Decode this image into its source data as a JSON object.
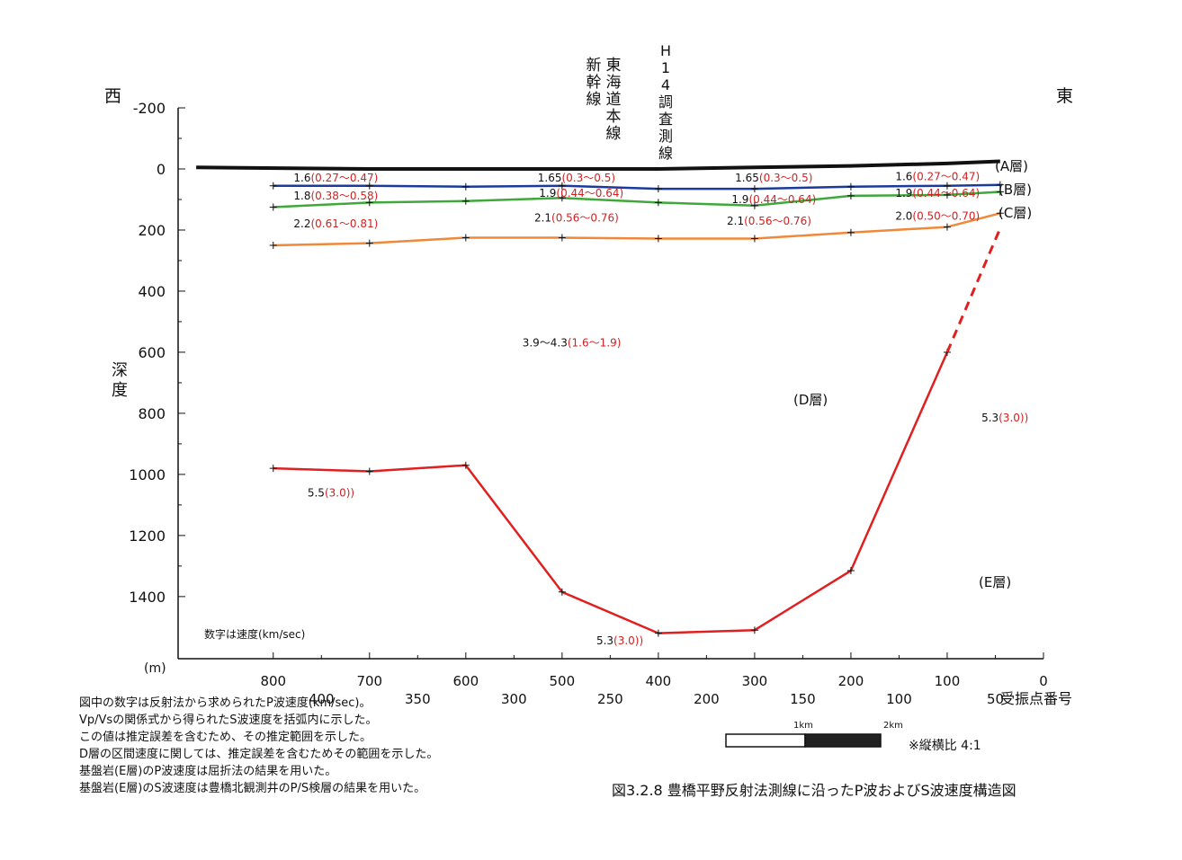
{
  "chart_data": {
    "type": "line",
    "direction": {
      "west": "西",
      "east": "東"
    },
    "ylabel": "深度",
    "yunit": "(m)",
    "xlabel": "受振点番号",
    "y_ticks": [
      "-200",
      "0",
      "200",
      "400",
      "600",
      "800",
      "1000",
      "1200",
      "1400"
    ],
    "ylim": [
      -200,
      1600
    ],
    "x_ticks_distance": [
      "800",
      "700",
      "600",
      "500",
      "400",
      "300",
      "200",
      "100",
      "0"
    ],
    "x_ticks_receiver": [
      "400",
      "350",
      "300",
      "250",
      "200",
      "150",
      "100",
      "50"
    ],
    "xlim": [
      880,
      0
    ],
    "line_labels": [
      {
        "text": "東海道本線"
      },
      {
        "text": "新幹線"
      },
      {
        "text": "H14調査測線"
      }
    ],
    "layer_labels": [
      "(A層)",
      "(B層)",
      "(C層)",
      "(D層)",
      "(E層)"
    ],
    "series": [
      {
        "id": "surface",
        "color": "#111111",
        "points": [
          [
            880,
            -5
          ],
          [
            700,
            0
          ],
          [
            500,
            0
          ],
          [
            400,
            0
          ],
          [
            300,
            -5
          ],
          [
            200,
            -10
          ],
          [
            100,
            -18
          ],
          [
            45,
            -25
          ]
        ]
      },
      {
        "id": "ab",
        "color": "#1a3a9c",
        "points": [
          [
            800,
            55
          ],
          [
            700,
            55
          ],
          [
            600,
            58
          ],
          [
            500,
            55
          ],
          [
            400,
            65
          ],
          [
            300,
            65
          ],
          [
            200,
            58
          ],
          [
            100,
            55
          ],
          [
            45,
            52
          ]
        ]
      },
      {
        "id": "bc",
        "color": "#3fa83a",
        "points": [
          [
            800,
            125
          ],
          [
            700,
            110
          ],
          [
            600,
            105
          ],
          [
            500,
            95
          ],
          [
            400,
            110
          ],
          [
            300,
            120
          ],
          [
            200,
            88
          ],
          [
            100,
            85
          ],
          [
            45,
            75
          ]
        ]
      },
      {
        "id": "cd",
        "color": "#f0883a",
        "points": [
          [
            800,
            250
          ],
          [
            700,
            243
          ],
          [
            600,
            225
          ],
          [
            500,
            225
          ],
          [
            400,
            228
          ],
          [
            300,
            228
          ],
          [
            200,
            208
          ],
          [
            100,
            190
          ],
          [
            45,
            145
          ]
        ]
      },
      {
        "id": "de",
        "color": "#e02020",
        "points": [
          [
            800,
            980
          ],
          [
            700,
            990
          ],
          [
            600,
            970
          ],
          [
            500,
            1385
          ],
          [
            400,
            1520
          ],
          [
            300,
            1510
          ],
          [
            200,
            1315
          ],
          [
            100,
            600
          ]
        ]
      },
      {
        "id": "de-dashed",
        "color": "#e02020",
        "dashed": true,
        "points": [
          [
            100,
            600
          ],
          [
            45,
            195
          ]
        ]
      }
    ],
    "velocity_labels": [
      {
        "vp": "1.6",
        "vs": "(0.27～0.47)",
        "x": 735,
        "y": 30
      },
      {
        "vp": "1.65",
        "vs": "(0.3～0.5)",
        "x": 485,
        "y": 30
      },
      {
        "vp": "1.65",
        "vs": "(0.3～0.5)",
        "x": 280,
        "y": 30
      },
      {
        "vp": "1.6",
        "vs": "(0.27～0.47)",
        "x": 110,
        "y": 25
      },
      {
        "vp": "1.8",
        "vs": "(0.38～0.58)",
        "x": 735,
        "y": 88
      },
      {
        "vp": "1.9",
        "vs": "(0.44～0.64)",
        "x": 480,
        "y": 80
      },
      {
        "vp": "1.9",
        "vs": "(0.44～0.64)",
        "x": 280,
        "y": 100
      },
      {
        "vp": "1.9",
        "vs": "(0.44～0.64)",
        "x": 110,
        "y": 80
      },
      {
        "vp": "2.2",
        "vs": "(0.61～0.81)",
        "x": 735,
        "y": 180
      },
      {
        "vp": "2.1",
        "vs": "(0.56～0.76)",
        "x": 485,
        "y": 160
      },
      {
        "vp": "2.1",
        "vs": "(0.56～0.76)",
        "x": 285,
        "y": 170
      },
      {
        "vp": "2.0",
        "vs": "(0.50～0.70)",
        "x": 110,
        "y": 155
      },
      {
        "vp": "3.9～4.3",
        "vs": "(1.6～1.9)",
        "x": 490,
        "y": 570
      },
      {
        "vp": "5.3",
        "vs": "(3.0))",
        "x": 40,
        "y": 815
      },
      {
        "vp": "5.5",
        "vs": "(3.0))",
        "x": 740,
        "y": 1060
      },
      {
        "vp": "5.3",
        "vs": "(3.0))",
        "x": 440,
        "y": 1545
      }
    ],
    "speed_note": "数字は速度(km/sec)"
  },
  "scale_bar": {
    "label1": "1km",
    "label2": "2km",
    "ratio": "※縦横比 4:1"
  },
  "notes": [
    "図中の数字は反射法から求められたP波速度(km/sec)。",
    "Vp/Vsの関係式から得られたS波速度を括弧内に示した。",
    "この値は推定誤差を含むため、その推定範囲を示した。",
    "D層の区間速度に関しては、推定誤差を含むためその範囲を示した。",
    "基盤岩(E層)のP波速度は屈折法の結果を用いた。",
    "基盤岩(E層)のS波速度は豊橋北観測井のP/S検層の結果を用いた。"
  ],
  "caption": "図3.2.8 豊橋平野反射法測線に沿ったP波およびS波速度構造図",
  "colors": {
    "vp": "#111111",
    "vs": "#d42020"
  }
}
